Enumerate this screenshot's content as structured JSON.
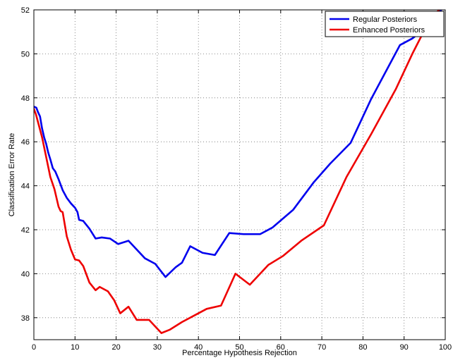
{
  "chart_data": {
    "type": "line",
    "title": "",
    "xlabel": "Percentage Hypothesis Rejection",
    "ylabel": "Classification Error Rate",
    "xlim": [
      0,
      100
    ],
    "ylim": [
      37,
      52
    ],
    "xticks": [
      0,
      10,
      20,
      30,
      40,
      50,
      60,
      70,
      80,
      90,
      100
    ],
    "yticks": [
      38,
      40,
      42,
      44,
      46,
      48,
      50,
      52
    ],
    "grid": true,
    "legend_position": "top-right",
    "series": [
      {
        "name": "Regular Posteriors",
        "color": "#0000ee",
        "points": [
          [
            0,
            47.6
          ],
          [
            0.6,
            47.55
          ],
          [
            1.0,
            47.35
          ],
          [
            1.5,
            47.15
          ],
          [
            2.0,
            46.6
          ],
          [
            2.5,
            46.2
          ],
          [
            3.0,
            45.9
          ],
          [
            3.5,
            45.5
          ],
          [
            4.0,
            45.2
          ],
          [
            4.6,
            44.8
          ],
          [
            5.2,
            44.65
          ],
          [
            6.0,
            44.3
          ],
          [
            7.0,
            43.8
          ],
          [
            8.0,
            43.45
          ],
          [
            9.0,
            43.2
          ],
          [
            10.0,
            43.0
          ],
          [
            10.6,
            42.8
          ],
          [
            11.0,
            42.45
          ],
          [
            12.0,
            42.4
          ],
          [
            13.5,
            42.05
          ],
          [
            15.0,
            41.6
          ],
          [
            16.5,
            41.65
          ],
          [
            18.5,
            41.6
          ],
          [
            20.5,
            41.35
          ],
          [
            23.0,
            41.5
          ],
          [
            27.0,
            40.7
          ],
          [
            29.5,
            40.45
          ],
          [
            32.0,
            39.85
          ],
          [
            34.5,
            40.3
          ],
          [
            36.0,
            40.5
          ],
          [
            38.0,
            41.25
          ],
          [
            41.0,
            40.95
          ],
          [
            44.0,
            40.85
          ],
          [
            47.5,
            41.85
          ],
          [
            51.0,
            41.8
          ],
          [
            55.0,
            41.8
          ],
          [
            58.0,
            42.1
          ],
          [
            63.0,
            42.9
          ],
          [
            68.0,
            44.15
          ],
          [
            72.0,
            45.0
          ],
          [
            77.0,
            45.95
          ],
          [
            82.0,
            47.95
          ],
          [
            89.0,
            50.4
          ],
          [
            92.0,
            50.7
          ],
          [
            94.0,
            51.0
          ],
          [
            96.0,
            51.3
          ],
          [
            98.0,
            51.8
          ],
          [
            99.0,
            52.0
          ]
        ]
      },
      {
        "name": "Enhanced Posteriors",
        "color": "#ee0000",
        "points": [
          [
            0,
            47.5
          ],
          [
            0.5,
            47.25
          ],
          [
            1.0,
            46.9
          ],
          [
            2.0,
            46.2
          ],
          [
            3.0,
            45.3
          ],
          [
            4.0,
            44.4
          ],
          [
            5.0,
            43.85
          ],
          [
            6.0,
            43.05
          ],
          [
            6.5,
            42.85
          ],
          [
            7.0,
            42.8
          ],
          [
            8.0,
            41.7
          ],
          [
            9.0,
            41.1
          ],
          [
            10.0,
            40.65
          ],
          [
            11.0,
            40.6
          ],
          [
            12.0,
            40.35
          ],
          [
            13.5,
            39.6
          ],
          [
            15.0,
            39.25
          ],
          [
            16.0,
            39.4
          ],
          [
            18.0,
            39.2
          ],
          [
            19.5,
            38.8
          ],
          [
            21.0,
            38.2
          ],
          [
            23.0,
            38.5
          ],
          [
            25.0,
            37.9
          ],
          [
            28.0,
            37.9
          ],
          [
            31.0,
            37.3
          ],
          [
            33.0,
            37.45
          ],
          [
            36.0,
            37.8
          ],
          [
            40.0,
            38.2
          ],
          [
            42.0,
            38.4
          ],
          [
            45.5,
            38.55
          ],
          [
            49.0,
            40.0
          ],
          [
            52.5,
            39.5
          ],
          [
            57.0,
            40.4
          ],
          [
            60.5,
            40.8
          ],
          [
            65.0,
            41.5
          ],
          [
            70.5,
            42.2
          ],
          [
            76.0,
            44.4
          ],
          [
            82.0,
            46.35
          ],
          [
            88.0,
            48.4
          ],
          [
            92.0,
            50.0
          ],
          [
            95.0,
            51.1
          ],
          [
            97.0,
            51.7
          ],
          [
            98.5,
            52.0
          ]
        ]
      }
    ]
  }
}
